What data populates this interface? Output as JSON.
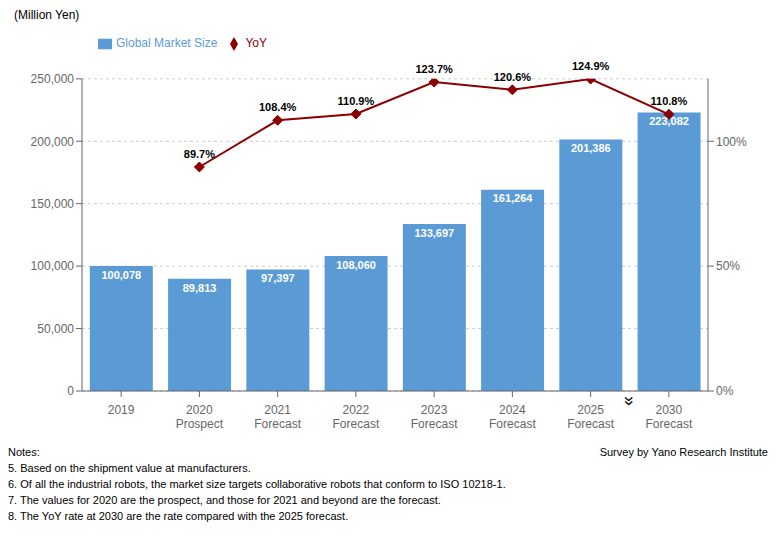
{
  "chart_data": {
    "type": "bar",
    "categories": [
      "2019",
      "2020\nProspect",
      "2021\nForecast",
      "2022\nForecast",
      "2023\nForecast",
      "2024\nForecast",
      "2025\nForecast",
      "2030\nForecast"
    ],
    "series": [
      {
        "name": "Global Market Size",
        "type": "bar",
        "color": "#5B9BD5",
        "values": [
          100078,
          89813,
          97397,
          108060,
          133697,
          161264,
          201386,
          223082
        ],
        "value_labels": [
          "100,078",
          "89,813",
          "97,397",
          "108,060",
          "133,697",
          "161,264",
          "201,386",
          "223,082"
        ]
      },
      {
        "name": "YoY",
        "type": "line",
        "axis": "y2",
        "color": "#8B0000",
        "marker": "diamond",
        "values": [
          null,
          89.7,
          108.4,
          110.9,
          123.7,
          120.6,
          124.9,
          110.8
        ],
        "value_labels": [
          null,
          "89.7%",
          "108.4%",
          "110.9%",
          "123.7%",
          "120.6%",
          "124.9%",
          "110.8%"
        ]
      }
    ],
    "ylabel": "(Million Yen)",
    "ylim": [
      0,
      250000
    ],
    "yticks": [
      0,
      {
        "value": 50000,
        "label": "50,000"
      },
      {
        "value": 100000,
        "label": "100,000"
      },
      {
        "value": 150000,
        "label": "150,000"
      },
      {
        "value": 200000,
        "label": "200,000"
      },
      {
        "value": 250000,
        "label": "250,000"
      }
    ],
    "y2lim": [
      0,
      125
    ],
    "y2ticks": [
      {
        "value": 0,
        "label": "0%"
      },
      {
        "value": 50,
        "label": "50%"
      },
      {
        "value": 100,
        "label": "100%"
      }
    ],
    "grid": true,
    "data_labels": true,
    "annotations": [
      "»",
      "Notes:",
      "Survey by Yano Research Institute",
      "5. Based on the shipment value at manufacturers.",
      "6. Of all the industrial robots, the market size targets collaborative robots that conform to ISO 10218-1.",
      "7. The values for 2020 are the prospect, and those for 2021 and beyond are the forecast.",
      "8. The YoY rate at 2030 are the rate compared with the 2025 forecast."
    ]
  }
}
